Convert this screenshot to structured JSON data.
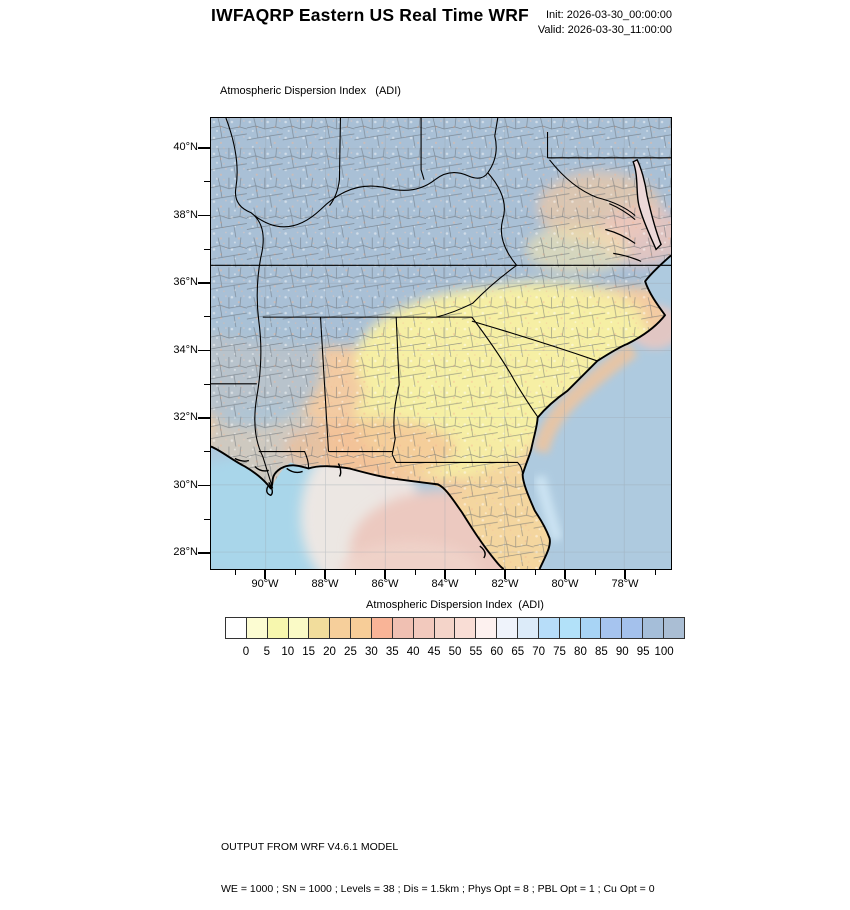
{
  "header": {
    "title": "IWFAQRP Eastern US Real Time WRF",
    "init": "Init: 2026-03-30_00:00:00",
    "valid": "Valid: 2026-03-30_11:00:00"
  },
  "map": {
    "subtitle": "Atmospheric Dispersion Index   (ADI)",
    "lat_ticks": [
      "40°N",
      "38°N",
      "36°N",
      "34°N",
      "32°N",
      "30°N",
      "28°N"
    ],
    "lon_ticks": [
      "90°W",
      "88°W",
      "86°W",
      "84°W",
      "82°W",
      "80°W",
      "78°W"
    ],
    "regions": [
      {
        "area": "Midwest / Ohio Valley / Kentucky / Tennessee",
        "shade": "blue-gray",
        "adi_approx": "95-100+"
      },
      {
        "area": "Virginia / West Virginia mountains",
        "shade": "mottled blue-orange-pink",
        "adi_approx": "20-100"
      },
      {
        "area": "Carolinas / Georgia",
        "shade": "pale yellow",
        "adi_approx": "5-15"
      },
      {
        "area": "Alabama / Mississippi / Louisiana / Florida",
        "shade": "orange-tan",
        "adi_approx": "20-35"
      },
      {
        "area": "Gulf of Mexico offshore",
        "shade": "light blue with salmon band",
        "adi_approx": "40-75"
      },
      {
        "area": "Atlantic offshore",
        "shade": "gray-blue",
        "adi_approx": "95-100"
      }
    ]
  },
  "colorbar": {
    "title": "Atmospheric Dispersion Index  (ADI)",
    "tick_labels": [
      "0",
      "5",
      "10",
      "15",
      "20",
      "25",
      "30",
      "35",
      "40",
      "45",
      "50",
      "55",
      "60",
      "65",
      "70",
      "75",
      "80",
      "85",
      "90",
      "95",
      "100"
    ],
    "colors": [
      "#ffffff",
      "#fcfcd2",
      "#f7f7ae",
      "#fafac6",
      "#f2dd9c",
      "#f6cf9b",
      "#f7cd98",
      "#f9b497",
      "#f0c0b2",
      "#f2c9bd",
      "#f4d4c9",
      "#f9ddd5",
      "#fdf1ef",
      "#eff3fb",
      "#dcebf9",
      "#b7ddf9",
      "#b2e1f9",
      "#a8d4f5",
      "#a6c4ef",
      "#a4c1ec",
      "#a5bed9",
      "#aabed4"
    ]
  },
  "footer": {
    "line1": "OUTPUT FROM WRF V4.6.1 MODEL",
    "line2": "WE = 1000 ; SN = 1000 ; Levels = 38 ; Dis = 1.5km ; Phys Opt = 8 ; PBL Opt = 1 ; Cu Opt = 0"
  }
}
